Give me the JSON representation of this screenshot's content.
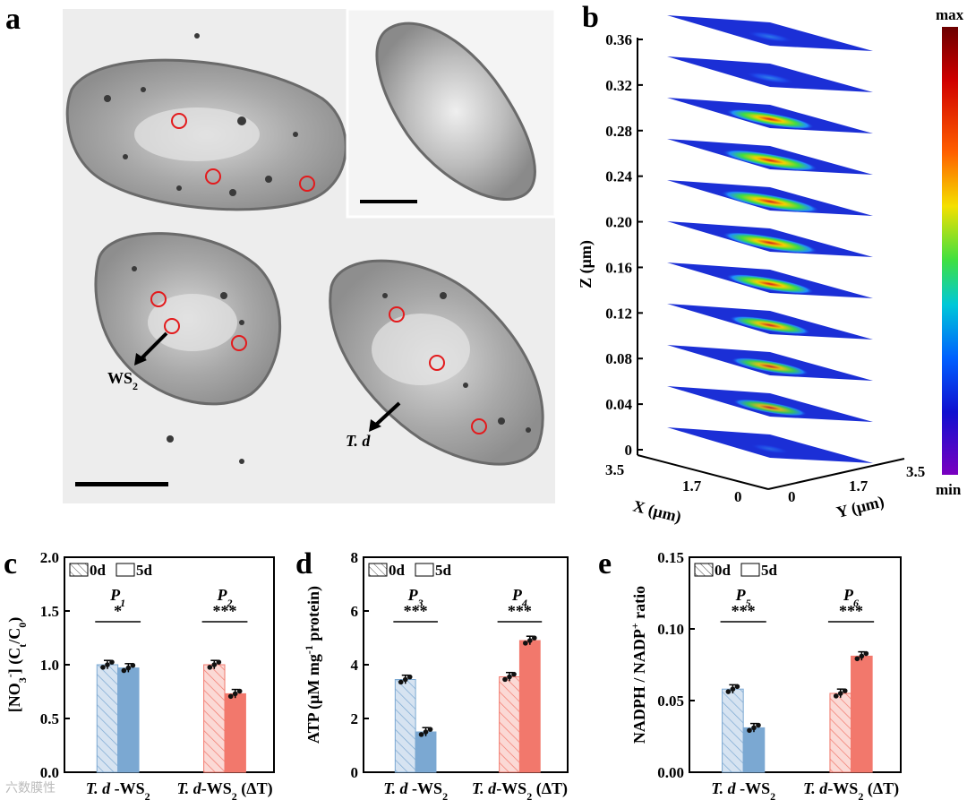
{
  "panel_labels": {
    "a": "a",
    "b": "b",
    "c": "c",
    "d": "d",
    "e": "e"
  },
  "panel_a": {
    "arrow_ws2": "WS",
    "arrow_ws2_sub": "2",
    "arrow_td": "T. d"
  },
  "panel_b": {
    "colorbar_max": "max",
    "colorbar_min": "min",
    "zlabel": "Z (μm)",
    "z_ticks": [
      "0",
      "0.04",
      "0.08",
      "0.12",
      "0.16",
      "0.20",
      "0.24",
      "0.28",
      "0.32",
      "0.36"
    ],
    "slice_intensity": [
      0.05,
      0.55,
      0.6,
      0.65,
      0.75,
      0.85,
      0.9,
      0.85,
      0.75,
      0.2,
      0.15
    ],
    "xlabel": "X (μm)",
    "ylabel": "Y (μm)",
    "x_ticks": [
      "3.5",
      "1.7",
      "0"
    ],
    "y_ticks": [
      "0",
      "1.7",
      "3.5"
    ],
    "colors": {
      "slice": "#1b2fd6",
      "hot": "#d81b1b",
      "warm": "#f4d000",
      "mid": "#3ddc45"
    }
  },
  "legend": {
    "day0": "0d",
    "day5": "5d"
  },
  "colors": {
    "blue": "#7ba8d2",
    "blue_light": "#d6e3f1",
    "red": "#f2786c",
    "red_light": "#fbd9d5"
  },
  "chart_data": [
    {
      "type": "bar",
      "panel": "c",
      "ylabel": "[NO3-] (Ct/C0)",
      "ylim": [
        0,
        2.0
      ],
      "yticks": [
        "0.0",
        "0.5",
        "1.0",
        "1.5",
        "2.0"
      ],
      "categories": [
        "T. d -WS2",
        "T. d-WS2 (ΔT)"
      ],
      "series": [
        {
          "name": "0d",
          "values": [
            1.0,
            1.0
          ]
        },
        {
          "name": "5d",
          "values": [
            0.97,
            0.73
          ]
        }
      ],
      "significance": [
        {
          "label": "P1",
          "stars": "*"
        },
        {
          "label": "P2",
          "stars": "***"
        }
      ]
    },
    {
      "type": "bar",
      "panel": "d",
      "ylabel": "ATP (μM mg-1 protein)",
      "ylim": [
        0,
        8
      ],
      "yticks": [
        "0",
        "2",
        "4",
        "6",
        "8"
      ],
      "categories": [
        "T. d -WS2",
        "T. d-WS2 (ΔT)"
      ],
      "series": [
        {
          "name": "0d",
          "values": [
            3.45,
            3.55
          ]
        },
        {
          "name": "5d",
          "values": [
            1.5,
            4.9
          ]
        }
      ],
      "significance": [
        {
          "label": "P3",
          "stars": "***"
        },
        {
          "label": "P4",
          "stars": "***"
        }
      ]
    },
    {
      "type": "bar",
      "panel": "e",
      "ylabel": "NADPH / NADP+ ratio",
      "ylim": [
        0,
        0.15
      ],
      "yticks": [
        "0.00",
        "0.05",
        "0.10",
        "0.15"
      ],
      "categories": [
        "T. d -WS2",
        "T. d-WS2 (ΔT)"
      ],
      "series": [
        {
          "name": "0d",
          "values": [
            0.058,
            0.055
          ]
        },
        {
          "name": "5d",
          "values": [
            0.031,
            0.081
          ]
        }
      ],
      "significance": [
        {
          "label": "P5",
          "stars": "***"
        },
        {
          "label": "P6",
          "stars": "***"
        }
      ]
    }
  ],
  "watermark": "六数膜性"
}
